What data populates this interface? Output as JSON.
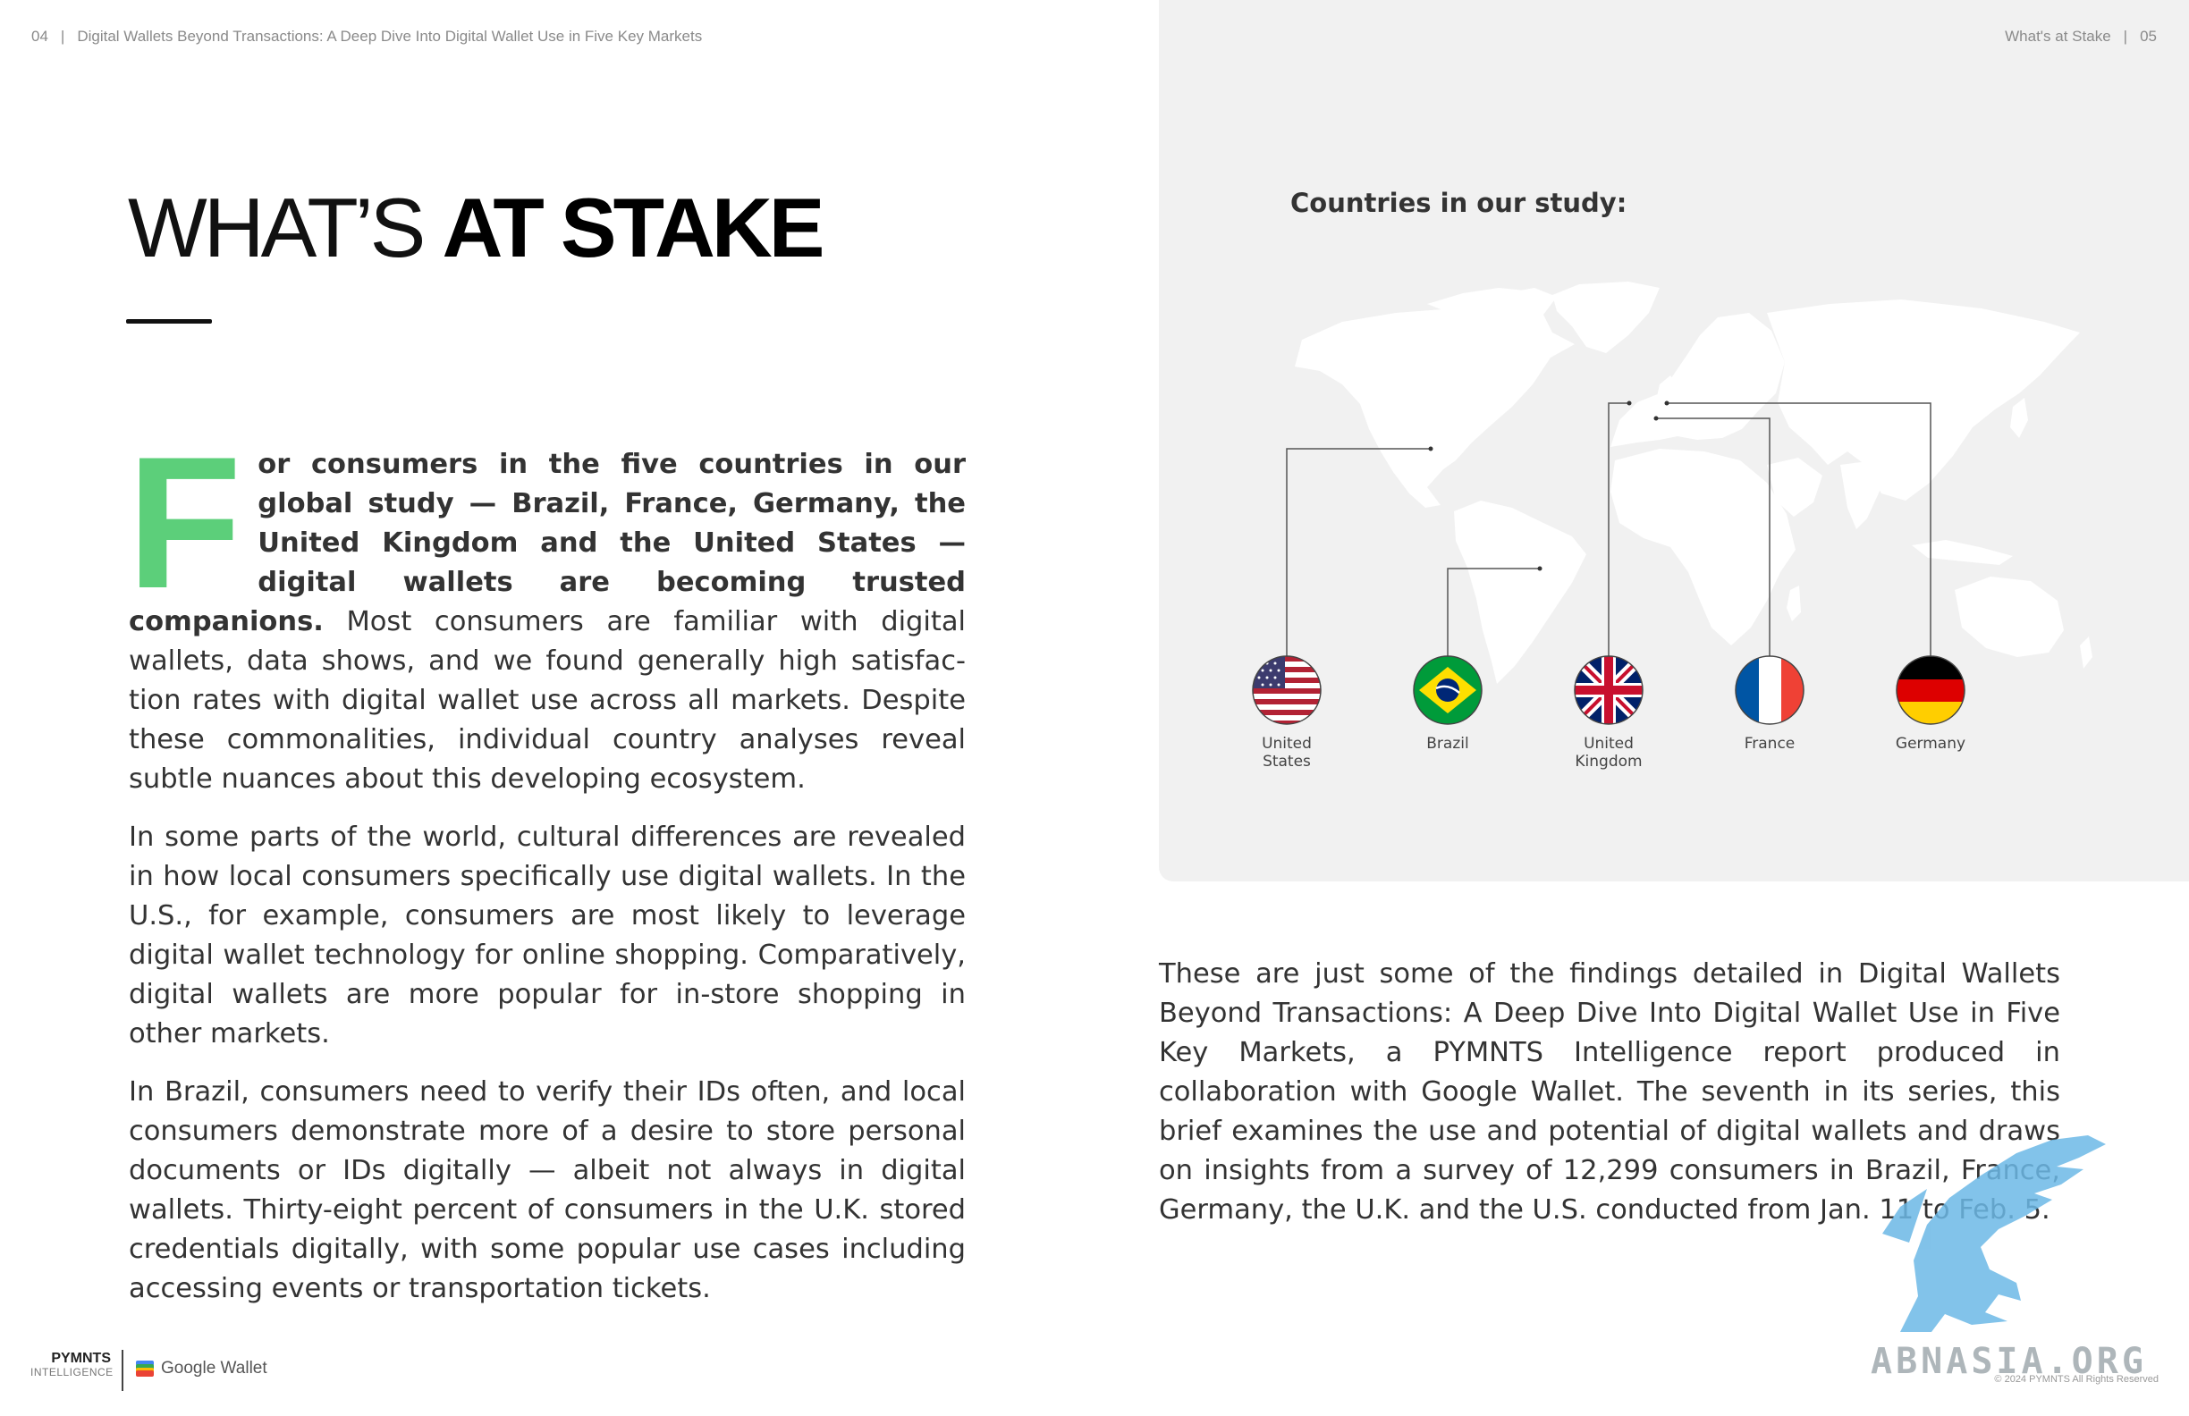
{
  "header": {
    "left_page_num": "04",
    "left_sep": "|",
    "left_title": "Digital Wallets Beyond Transactions: A Deep Dive Into Digital Wallet Use in Five Key Markets",
    "right_title": "What's at Stake",
    "right_sep": "|",
    "right_page_num": "05"
  },
  "title": {
    "thin": "WHAT’S ",
    "bold": "AT STAKE"
  },
  "intro": {
    "dropcap": "F",
    "lead": "or consumers in the five countries in our global study — Brazil, France, Germany, the United Kingdom and the United States — digital wallets are becoming trusted companions.",
    "rest": " Most consumers are familiar with digital wallets, data shows, and we found generally high satisfac­tion rates with digital wallet use across all markets. Despite these commonalities, individual country analyses reveal subtle nuances about this developing ecosystem."
  },
  "paragraphs": [
    "In some parts of the world, cultural differences are revealed in how local consumers specifically use digital wallets. In the U.S., for example, consumers are most likely to leverage digital wallet technology for online shopping. Comparatively, digital wallets are more popular for in-store shopping in other markets.",
    "In Brazil, consumers need to verify their IDs often, and local consumers demonstrate more of a desire to store personal doc­uments or IDs digitally — albeit not always in digital wallets. Thirty-eight percent of consumers in the U.K. stored creden­tials digitally, with some popular use cases including accessing events or transportation tickets."
  ],
  "right_paragraph": "These are just some of the findings detailed in Digital Wallets Beyond Transactions: A Deep Dive Into Digital Wallet Use in Five Key Mar­kets, a PYMNTS Intelligence report produced in collaboration with Google Wallet. The seventh in its series, this brief examines the use and potential of digital wallets and draws on insights from a survey of 12,299 consumers in Brazil, France, Germany, the U.K. and the U.S. conducted from Jan. 11 to Feb. 5.",
  "map": {
    "title": "Countries in our study:",
    "countries": [
      {
        "line1": "United",
        "line2": "States",
        "flag": "us-flag-icon"
      },
      {
        "line1": "Brazil",
        "line2": "",
        "flag": "brazil-flag-icon"
      },
      {
        "line1": "United",
        "line2": "Kingdom",
        "flag": "uk-flag-icon"
      },
      {
        "line1": "France",
        "line2": "",
        "flag": "france-flag-icon"
      },
      {
        "line1": "Germany",
        "line2": "",
        "flag": "germany-flag-icon"
      }
    ],
    "colors": {
      "panel": "#f1f1f1",
      "land": "#ffffff",
      "connector": "#555555"
    }
  },
  "footer": {
    "brand_top": "PYMNTS",
    "brand_bottom": "INTELLIGENCE",
    "partner": "Google Wallet",
    "copyright": "© 2024 PYMNTS All Rights Reserved"
  },
  "watermark": {
    "text": "ABNASIA.ORG"
  },
  "colors": {
    "accent": "#5ccf7a",
    "text": "#333333"
  }
}
